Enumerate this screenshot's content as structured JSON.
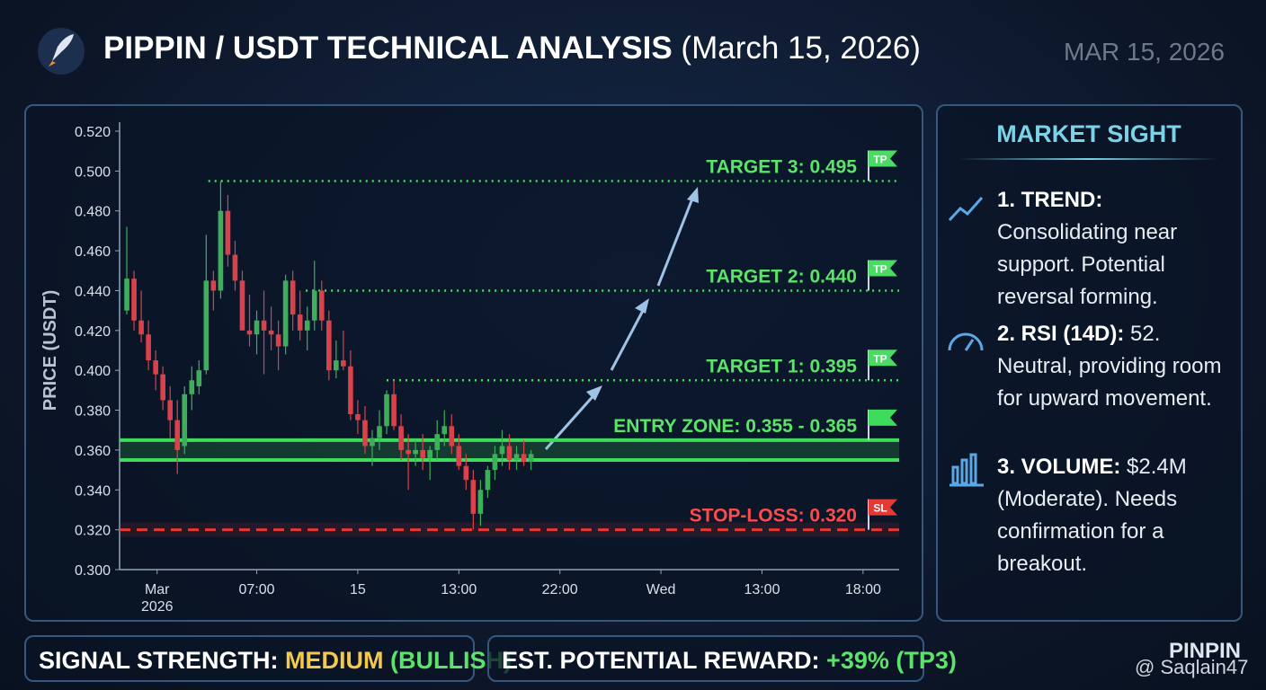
{
  "header": {
    "title": "PIPPIN / USDT TECHNICAL ANALYSIS",
    "title_date": "(March 15, 2026)",
    "date": "MAR 15, 2026"
  },
  "chart_data": {
    "type": "candlestick",
    "y_label": "PRICE (USDT)",
    "ylim": [
      0.3,
      0.52
    ],
    "yticks": [
      {
        "value": 0.3,
        "label": "0.300"
      },
      {
        "value": 0.32,
        "label": "0.320"
      },
      {
        "value": 0.34,
        "label": "0.340"
      },
      {
        "value": 0.36,
        "label": "0.360"
      },
      {
        "value": 0.38,
        "label": "0.380"
      },
      {
        "value": 0.4,
        "label": "0.400"
      },
      {
        "value": 0.42,
        "label": "0.420"
      },
      {
        "value": 0.44,
        "label": "0.440"
      },
      {
        "value": 0.46,
        "label": "0.460"
      },
      {
        "value": 0.48,
        "label": "0.480"
      },
      {
        "value": 0.5,
        "label": "0.500"
      },
      {
        "value": 0.52,
        "label": "0.520"
      }
    ],
    "xlim": [
      0,
      108
    ],
    "xticks": [
      {
        "value": 5.2,
        "label": "Mar\n2026"
      },
      {
        "value": 19,
        "label": "07:00"
      },
      {
        "value": 33,
        "label": "15"
      },
      {
        "value": 47,
        "label": "13:00"
      },
      {
        "value": 61,
        "label": "22:00"
      },
      {
        "value": 75,
        "label": "Wed"
      },
      {
        "value": 89,
        "label": "13:00"
      },
      {
        "value": 103,
        "label": "18:00"
      }
    ],
    "up_color": "#3fae5a",
    "down_color": "#d9424a",
    "candles": {
      "x": [
        1,
        2,
        3,
        4,
        5,
        6,
        7,
        8,
        9,
        10,
        11,
        12,
        13,
        14,
        15,
        16,
        17,
        18,
        19,
        20,
        21,
        22,
        23,
        24,
        25,
        26,
        27,
        28,
        29,
        30,
        31,
        32,
        33,
        34,
        35,
        36,
        37,
        38,
        39,
        40,
        41,
        42,
        43,
        44,
        45,
        46,
        47,
        48,
        49,
        50,
        51,
        52,
        53,
        54,
        55,
        56,
        57
      ],
      "open": [
        0.43,
        0.446,
        0.425,
        0.418,
        0.405,
        0.398,
        0.385,
        0.375,
        0.362,
        0.388,
        0.392,
        0.4,
        0.445,
        0.44,
        0.48,
        0.458,
        0.445,
        0.42,
        0.418,
        0.425,
        0.42,
        0.418,
        0.412,
        0.445,
        0.428,
        0.42,
        0.425,
        0.44,
        0.425,
        0.4,
        0.405,
        0.402,
        0.378,
        0.375,
        0.362,
        0.366,
        0.372,
        0.388,
        0.372,
        0.36,
        0.358,
        0.36,
        0.356,
        0.36,
        0.368,
        0.372,
        0.362,
        0.352,
        0.345,
        0.328,
        0.34,
        0.35,
        0.358,
        0.362,
        0.355,
        0.358,
        0.354
      ],
      "high": [
        0.472,
        0.45,
        0.44,
        0.425,
        0.41,
        0.402,
        0.392,
        0.385,
        0.392,
        0.402,
        0.405,
        0.468,
        0.45,
        0.495,
        0.488,
        0.465,
        0.45,
        0.438,
        0.43,
        0.44,
        0.432,
        0.425,
        0.448,
        0.45,
        0.44,
        0.432,
        0.455,
        0.445,
        0.43,
        0.415,
        0.42,
        0.41,
        0.385,
        0.382,
        0.37,
        0.38,
        0.39,
        0.395,
        0.378,
        0.368,
        0.365,
        0.368,
        0.362,
        0.375,
        0.38,
        0.378,
        0.368,
        0.358,
        0.35,
        0.345,
        0.352,
        0.362,
        0.37,
        0.368,
        0.362,
        0.365,
        0.36
      ],
      "low": [
        0.428,
        0.42,
        0.414,
        0.4,
        0.39,
        0.38,
        0.366,
        0.348,
        0.358,
        0.38,
        0.388,
        0.398,
        0.43,
        0.436,
        0.452,
        0.44,
        0.42,
        0.412,
        0.408,
        0.398,
        0.41,
        0.4,
        0.408,
        0.42,
        0.415,
        0.41,
        0.42,
        0.42,
        0.395,
        0.396,
        0.4,
        0.375,
        0.368,
        0.358,
        0.352,
        0.36,
        0.368,
        0.37,
        0.355,
        0.34,
        0.352,
        0.35,
        0.345,
        0.355,
        0.362,
        0.358,
        0.35,
        0.34,
        0.32,
        0.322,
        0.336,
        0.345,
        0.352,
        0.35,
        0.35,
        0.352,
        0.35
      ],
      "close": [
        0.446,
        0.425,
        0.418,
        0.405,
        0.398,
        0.385,
        0.375,
        0.36,
        0.388,
        0.395,
        0.4,
        0.445,
        0.44,
        0.48,
        0.458,
        0.445,
        0.42,
        0.418,
        0.425,
        0.42,
        0.418,
        0.412,
        0.445,
        0.428,
        0.42,
        0.425,
        0.44,
        0.425,
        0.4,
        0.405,
        0.402,
        0.378,
        0.375,
        0.362,
        0.366,
        0.372,
        0.388,
        0.372,
        0.36,
        0.358,
        0.36,
        0.356,
        0.36,
        0.368,
        0.372,
        0.362,
        0.352,
        0.345,
        0.328,
        0.34,
        0.35,
        0.358,
        0.362,
        0.355,
        0.358,
        0.354,
        0.358
      ]
    },
    "levels": [
      {
        "label": "TARGET 3: 0.495",
        "value": 0.495,
        "x_start": 12.3,
        "flag": "TP",
        "color": "#4cd964",
        "style": "dotted"
      },
      {
        "label": "TARGET 2: 0.440",
        "value": 0.44,
        "x_start": 25.8,
        "flag": "TP",
        "color": "#4cd964",
        "style": "dotted"
      },
      {
        "label": "TARGET 1: 0.395",
        "value": 0.395,
        "x_start": 37,
        "flag": "TP",
        "color": "#4cd964",
        "style": "dotted"
      },
      {
        "label": "ENTRY ZONE: 0.355 - 0.365",
        "low": 0.355,
        "high": 0.365,
        "color": "#3ddc5a",
        "style": "band"
      },
      {
        "label": "STOP-LOSS: 0.320",
        "value": 0.32,
        "flag": "SL",
        "color": "#e53935",
        "style": "dashed"
      }
    ]
  },
  "panel": {
    "title": "MARKET SIGHT",
    "items": [
      {
        "lead": "1. TREND:",
        "text": " Consolidating near support. Potential reversal forming."
      },
      {
        "lead": "2. RSI (14D):",
        "text": " 52. Neutral, providing room for upward movement."
      },
      {
        "lead": "3. VOLUME:",
        "text": " $2.4M (Moderate). Needs confirmation for a breakout."
      }
    ]
  },
  "footer": {
    "signal_label": "SIGNAL STRENGTH:",
    "signal_value": "MEDIUM",
    "signal_bias": "(BULLISH)",
    "reward_label": "EST. POTENTIAL REWARD:",
    "reward_value": "+39% (TP3)"
  },
  "watermark": {
    "brand": "PINPIN",
    "handle": "@ Saqlain47"
  }
}
